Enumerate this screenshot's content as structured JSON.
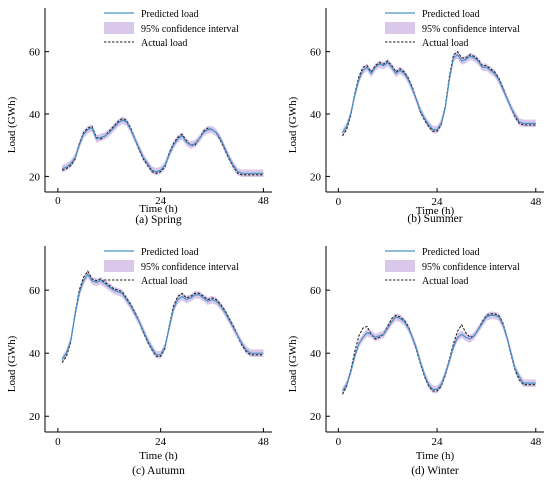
{
  "chart_data": [
    {
      "type": "line",
      "caption": "(a) Spring",
      "xlabel": "Time (h)",
      "ylabel": "Load (GWh)",
      "xlim": [
        -3,
        50
      ],
      "ylim": [
        15,
        74
      ],
      "xticks": [
        0,
        24,
        48
      ],
      "yticks": [
        20,
        40,
        60
      ],
      "grid": false,
      "legend_position": "top-left",
      "series": [
        {
          "name": "Predicted load",
          "style": "solid",
          "color": "#4a90c8",
          "x": [
            1,
            2,
            3,
            4,
            5,
            6,
            7,
            8,
            9,
            10,
            11,
            12,
            13,
            14,
            15,
            16,
            17,
            18,
            19,
            20,
            21,
            22,
            23,
            24,
            25,
            26,
            27,
            28,
            29,
            30,
            31,
            32,
            33,
            34,
            35,
            36,
            37,
            38,
            39,
            40,
            41,
            42,
            43,
            44,
            45,
            46,
            47,
            48
          ],
          "y": [
            22.5,
            23,
            24,
            26,
            30,
            33.5,
            35,
            35.5,
            32,
            32.5,
            33,
            34,
            35.5,
            37,
            38,
            37.5,
            35,
            32,
            29,
            26,
            24,
            22,
            21.5,
            22,
            23.5,
            27,
            30,
            32,
            33,
            31,
            30,
            30.5,
            32,
            34,
            35,
            35,
            34,
            32,
            29,
            26,
            23.5,
            21.5,
            21,
            21,
            21,
            21,
            21,
            21
          ]
        },
        {
          "name": "Actual load",
          "style": "dashed",
          "color": "#222222",
          "x": [
            1,
            2,
            3,
            4,
            5,
            6,
            7,
            8,
            9,
            10,
            11,
            12,
            13,
            14,
            15,
            16,
            17,
            18,
            19,
            20,
            21,
            22,
            23,
            24,
            25,
            26,
            27,
            28,
            29,
            30,
            31,
            32,
            33,
            34,
            35,
            36,
            37,
            38,
            39,
            40,
            41,
            42,
            43,
            44,
            45,
            46,
            47,
            48
          ],
          "y": [
            22,
            22.5,
            23.5,
            25.5,
            30.5,
            34,
            35.5,
            36,
            32.5,
            32,
            33,
            34.5,
            36,
            37.5,
            38.5,
            38,
            35.5,
            32,
            28.5,
            25.5,
            23.5,
            21.5,
            21,
            21.5,
            23,
            27.5,
            30.5,
            32.5,
            33.5,
            31.5,
            30,
            30,
            32,
            34.5,
            35.5,
            35,
            34,
            31.5,
            28.5,
            25.5,
            23,
            21,
            20.5,
            20.5,
            20.5,
            20.5,
            20.5,
            20.5
          ]
        },
        {
          "name": "95% confidence interval",
          "style": "band",
          "color": "#d9c8ea",
          "half_width": 1.2
        }
      ]
    },
    {
      "type": "line",
      "caption": "(b) Summer",
      "xlabel": "Time (h)",
      "ylabel": "Load (GWh)",
      "xlim": [
        -3,
        50
      ],
      "ylim": [
        15,
        74
      ],
      "xticks": [
        0,
        24,
        48
      ],
      "yticks": [
        20,
        40,
        60
      ],
      "grid": false,
      "legend_position": "top-left",
      "series": [
        {
          "name": "Predicted load",
          "style": "solid",
          "color": "#4a90c8",
          "x": [
            1,
            2,
            3,
            4,
            5,
            6,
            7,
            8,
            9,
            10,
            11,
            12,
            13,
            14,
            15,
            16,
            17,
            18,
            19,
            20,
            21,
            22,
            23,
            24,
            25,
            26,
            27,
            28,
            29,
            30,
            31,
            32,
            33,
            34,
            35,
            36,
            37,
            38,
            39,
            40,
            41,
            42,
            43,
            44,
            45,
            46,
            47,
            48
          ],
          "y": [
            34,
            36,
            40,
            46,
            51,
            54,
            55,
            53,
            55,
            56,
            55.5,
            56.5,
            55,
            53,
            54,
            53,
            51,
            48,
            44.5,
            41,
            38.5,
            36.5,
            35,
            35,
            37,
            42,
            51,
            58,
            59,
            57,
            57.5,
            58.5,
            58,
            57,
            55,
            55,
            54,
            53,
            51,
            48,
            45,
            42,
            39.5,
            37.5,
            37,
            37,
            37,
            37
          ]
        },
        {
          "name": "Actual load",
          "style": "dashed",
          "color": "#222222",
          "x": [
            1,
            2,
            3,
            4,
            5,
            6,
            7,
            8,
            9,
            10,
            11,
            12,
            13,
            14,
            15,
            16,
            17,
            18,
            19,
            20,
            21,
            22,
            23,
            24,
            25,
            26,
            27,
            28,
            29,
            30,
            31,
            32,
            33,
            34,
            35,
            36,
            37,
            38,
            39,
            40,
            41,
            42,
            43,
            44,
            45,
            46,
            47,
            48
          ],
          "y": [
            33,
            35,
            39.5,
            46.5,
            52,
            55,
            55.5,
            53.5,
            55.5,
            56.5,
            56,
            57,
            55.5,
            53.5,
            54.5,
            53.5,
            51.5,
            48.5,
            44.5,
            40.5,
            38,
            36,
            34.5,
            34.5,
            36.5,
            42.5,
            52,
            59,
            60,
            58,
            58,
            59,
            58.5,
            57.5,
            55.5,
            55.5,
            54.5,
            53.5,
            51.5,
            48.5,
            45,
            42,
            39,
            37,
            36.5,
            36.5,
            36.5,
            36.5
          ]
        },
        {
          "name": "95% confidence interval",
          "style": "band",
          "color": "#d9c8ea",
          "half_width": 1.2
        }
      ]
    },
    {
      "type": "line",
      "caption": "(c) Autumn",
      "xlabel": "Time (h)",
      "ylabel": "Load (GWh)",
      "xlim": [
        -3,
        50
      ],
      "ylim": [
        15,
        74
      ],
      "xticks": [
        0,
        24,
        48
      ],
      "yticks": [
        20,
        40,
        60
      ],
      "grid": false,
      "legend_position": "top-left",
      "series": [
        {
          "name": "Predicted load",
          "style": "solid",
          "color": "#4a90c8",
          "x": [
            1,
            2,
            3,
            4,
            5,
            6,
            7,
            8,
            9,
            10,
            11,
            12,
            13,
            14,
            15,
            16,
            17,
            18,
            19,
            20,
            21,
            22,
            23,
            24,
            25,
            26,
            27,
            28,
            29,
            30,
            31,
            32,
            33,
            34,
            35,
            36,
            37,
            38,
            39,
            40,
            41,
            42,
            43,
            44,
            45,
            46,
            47,
            48
          ],
          "y": [
            38,
            40,
            44,
            52,
            59,
            63,
            65,
            63,
            62.5,
            63,
            62,
            61,
            60,
            59.5,
            59,
            57,
            55,
            52.5,
            50,
            47,
            44,
            41.5,
            39.5,
            39.5,
            42,
            48,
            54,
            57,
            58,
            57,
            57.5,
            58.5,
            58.5,
            57.5,
            56.5,
            57,
            56.5,
            55,
            53,
            50.5,
            48,
            45.5,
            43,
            41,
            40,
            40,
            40,
            40
          ]
        },
        {
          "name": "Actual load",
          "style": "dashed",
          "color": "#222222",
          "x": [
            1,
            2,
            3,
            4,
            5,
            6,
            7,
            8,
            9,
            10,
            11,
            12,
            13,
            14,
            15,
            16,
            17,
            18,
            19,
            20,
            21,
            22,
            23,
            24,
            25,
            26,
            27,
            28,
            29,
            30,
            31,
            32,
            33,
            34,
            35,
            36,
            37,
            38,
            39,
            40,
            41,
            42,
            43,
            44,
            45,
            46,
            47,
            48
          ],
          "y": [
            37,
            39,
            43.5,
            52.5,
            60,
            64,
            66,
            63.5,
            63,
            63.5,
            62.5,
            61.5,
            60.5,
            60,
            59.5,
            57.5,
            55.5,
            53,
            50,
            46.5,
            43.5,
            41,
            39,
            39,
            41.5,
            48.5,
            55,
            58,
            59,
            57.5,
            58,
            59,
            59,
            58,
            57,
            57.5,
            57,
            55.5,
            53.5,
            51,
            48.5,
            45.5,
            42.5,
            40.5,
            39.5,
            39.5,
            39.5,
            39.5
          ]
        },
        {
          "name": "95% confidence interval",
          "style": "band",
          "color": "#d9c8ea",
          "half_width": 1.2
        }
      ]
    },
    {
      "type": "line",
      "caption": "(d) Winter",
      "xlabel": "Time (h)",
      "ylabel": "Load (GWh)",
      "xlim": [
        -3,
        50
      ],
      "ylim": [
        15,
        74
      ],
      "xticks": [
        0,
        24,
        48
      ],
      "yticks": [
        20,
        40,
        60
      ],
      "grid": false,
      "legend_position": "top-left",
      "series": [
        {
          "name": "Predicted load",
          "style": "solid",
          "color": "#4a90c8",
          "x": [
            1,
            2,
            3,
            4,
            5,
            6,
            7,
            8,
            9,
            10,
            11,
            12,
            13,
            14,
            15,
            16,
            17,
            18,
            19,
            20,
            21,
            22,
            23,
            24,
            25,
            26,
            27,
            28,
            29,
            30,
            31,
            32,
            33,
            34,
            35,
            36,
            37,
            38,
            39,
            40,
            41,
            42,
            43,
            44,
            45,
            46,
            47,
            48
          ],
          "y": [
            28,
            30,
            34,
            39,
            43,
            45,
            46.5,
            46,
            45,
            45.5,
            46,
            48,
            50,
            51.5,
            51,
            50,
            48,
            45,
            41.5,
            37,
            33,
            30,
            28.5,
            28.5,
            30,
            33.5,
            37.5,
            42,
            45,
            46,
            45,
            44.5,
            45.5,
            47.5,
            49.5,
            51.5,
            52,
            52,
            51.5,
            49,
            45,
            40,
            35,
            32.5,
            30.5,
            30.5,
            30.5,
            30.5
          ]
        },
        {
          "name": "Actual load",
          "style": "dashed",
          "color": "#222222",
          "x": [
            1,
            2,
            3,
            4,
            5,
            6,
            7,
            8,
            9,
            10,
            11,
            12,
            13,
            14,
            15,
            16,
            17,
            18,
            19,
            20,
            21,
            22,
            23,
            24,
            25,
            26,
            27,
            28,
            29,
            30,
            31,
            32,
            33,
            34,
            35,
            36,
            37,
            38,
            39,
            40,
            41,
            42,
            43,
            44,
            45,
            46,
            47,
            48
          ],
          "y": [
            27,
            29.5,
            34.5,
            40.5,
            45.5,
            48,
            48.5,
            46,
            44.5,
            45,
            46,
            48.5,
            51,
            52,
            51.5,
            50.5,
            48.5,
            45,
            41,
            36.5,
            32.5,
            29.5,
            28,
            28,
            29.5,
            33,
            38,
            43,
            47,
            49,
            46.5,
            45,
            45.5,
            47.5,
            50,
            52,
            52.5,
            52.5,
            52,
            49.5,
            45,
            39.5,
            34.5,
            31.5,
            30,
            30,
            30,
            30
          ]
        },
        {
          "name": "95% confidence interval",
          "style": "band",
          "color": "#d9c8ea",
          "half_width": 1.2
        }
      ]
    }
  ]
}
